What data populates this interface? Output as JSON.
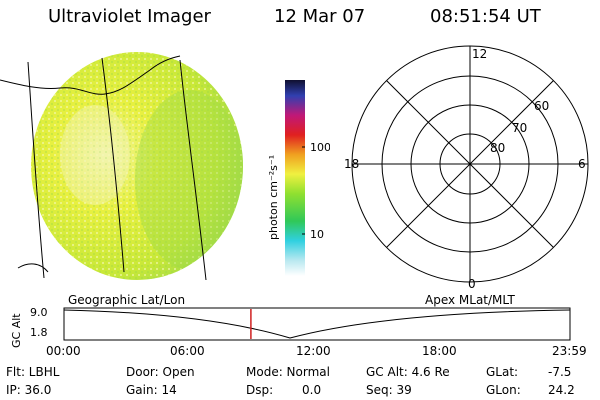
{
  "header": {
    "instrument": "Ultraviolet Imager",
    "date": "12 Mar 07",
    "time": "08:51:54 UT"
  },
  "colorbar": {
    "unit_label": "photon cm⁻²s⁻¹",
    "tick_100": "100",
    "tick_10": "10"
  },
  "polar": {
    "label_top": "12",
    "label_left": "18",
    "label_right": "6",
    "label_bottom": "0",
    "ring_60": "60",
    "ring_70": "70",
    "ring_80": "80"
  },
  "timeline": {
    "left_label": "Geographic Lat/Lon",
    "right_label": "Apex MLat/MLT",
    "y_axis_label": "GC Alt",
    "y_top": "9.0",
    "y_bottom": "1.8",
    "ticks": [
      "00:00",
      "06:00",
      "12:00",
      "18:00",
      "23:59"
    ],
    "current_marker_hours": 8.865
  },
  "status": {
    "flt": "Flt: LBHL",
    "ip": "IP: 36.0",
    "door": "Door: Open",
    "gain": "Gain: 14",
    "mode": "Mode: Normal",
    "dsp_label": "Dsp:",
    "dsp_value": "0.0",
    "gc_alt": "GC Alt: 4.6 Re",
    "seq": "Seq: 39",
    "glat_label": "GLat:",
    "glat_value": "-7.5",
    "glon_label": "GLon:",
    "glon_value": "24.2"
  },
  "colors": {
    "disk_yellow": "#e6f032",
    "disk_green": "#a8e040",
    "marker_red": "#d02020"
  }
}
